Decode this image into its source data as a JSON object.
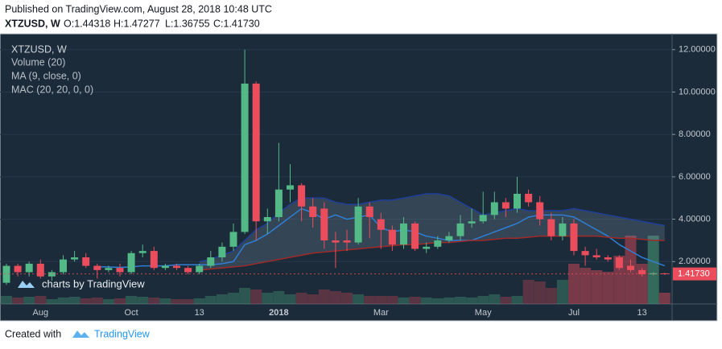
{
  "header": {
    "published": "Published on TradingView.com, August 28, 2018 10:48 UTC",
    "symbol": "XTZUSD, W",
    "ohlc": [
      "O:1.44318",
      "H:1.47277",
      "L:1.36755",
      "C:1.41730"
    ]
  },
  "chart_data": {
    "type": "candlestick",
    "legend": [
      "XTZUSD, W",
      "Volume (20)",
      "MA (9, close, 0)",
      "MAC (20, 20, 0, 0)"
    ],
    "watermark": "charts by TradingView",
    "categories": [
      null,
      null,
      null,
      "Aug",
      null,
      null,
      null,
      null,
      null,
      null,
      null,
      "Oct",
      null,
      null,
      null,
      null,
      null,
      "13",
      null,
      null,
      null,
      null,
      null,
      null,
      "2018",
      null,
      null,
      null,
      null,
      null,
      null,
      null,
      null,
      "Mar",
      null,
      null,
      null,
      null,
      null,
      null,
      null,
      null,
      "May",
      null,
      null,
      null,
      null,
      null,
      null,
      null,
      "Jul",
      null,
      null,
      null,
      null,
      null,
      "13",
      null,
      null
    ],
    "open": [
      1.0,
      1.8,
      1.5,
      1.9,
      1.3,
      1.5,
      2.1,
      2.2,
      1.8,
      1.6,
      1.7,
      1.5,
      2.4,
      2.5,
      1.7,
      1.8,
      1.7,
      1.5,
      1.8,
      2.2,
      2.7,
      3.4,
      10.4,
      3.9,
      4.1,
      5.4,
      5.6,
      4.6,
      4.5,
      3.0,
      3.0,
      2.9,
      4.6,
      4.0,
      3.5,
      2.8,
      3.8,
      2.6,
      2.7,
      3.0,
      3.2,
      3.8,
      3.9,
      4.2,
      4.8,
      4.5,
      5.2,
      4.8,
      4.0,
      3.2,
      3.8,
      2.5,
      2.3,
      2.2,
      2.2,
      1.8,
      1.6,
      1.4,
      1.44318
    ],
    "high": [
      1.9,
      1.9,
      2.0,
      2.1,
      1.6,
      2.3,
      2.5,
      2.4,
      1.9,
      1.8,
      1.9,
      2.5,
      2.8,
      2.7,
      1.9,
      1.9,
      1.8,
      1.9,
      2.5,
      2.9,
      3.8,
      12.0,
      10.5,
      4.5,
      7.6,
      6.6,
      5.7,
      5.0,
      4.8,
      3.4,
      3.5,
      5.0,
      4.8,
      4.3,
      3.7,
      4.1,
      3.9,
      2.9,
      3.2,
      3.4,
      4.2,
      4.5,
      5.3,
      5.3,
      5.0,
      6.0,
      5.4,
      5.1,
      4.3,
      4.1,
      4.0,
      2.7,
      2.6,
      2.3,
      2.3,
      2.1,
      1.7,
      1.5,
      1.47277
    ],
    "low": [
      0.9,
      1.3,
      1.3,
      1.2,
      1.1,
      1.4,
      2.0,
      1.7,
      1.2,
      1.5,
      1.3,
      1.4,
      2.2,
      1.6,
      1.6,
      1.6,
      1.4,
      1.4,
      1.7,
      2.0,
      2.5,
      3.3,
      3.0,
      3.3,
      3.9,
      4.8,
      3.9,
      3.6,
      2.6,
      1.7,
      2.5,
      2.8,
      3.1,
      2.6,
      2.5,
      2.6,
      2.5,
      2.4,
      2.6,
      2.9,
      3.0,
      3.6,
      3.8,
      4.0,
      4.1,
      4.3,
      4.6,
      3.7,
      3.0,
      3.0,
      2.3,
      1.8,
      2.1,
      2.0,
      1.6,
      1.5,
      1.3,
      1.35,
      1.36755
    ],
    "close": [
      1.8,
      1.5,
      1.9,
      1.3,
      1.5,
      2.1,
      2.2,
      1.8,
      1.6,
      1.7,
      1.5,
      2.4,
      2.5,
      1.7,
      1.8,
      1.7,
      1.5,
      1.8,
      2.2,
      2.7,
      3.4,
      10.4,
      3.9,
      4.1,
      5.4,
      5.6,
      4.6,
      4.1,
      3.0,
      2.9,
      2.9,
      4.6,
      4.1,
      3.5,
      2.8,
      3.8,
      2.6,
      2.7,
      3.0,
      3.2,
      3.8,
      3.9,
      4.2,
      4.8,
      4.5,
      5.2,
      4.8,
      4.0,
      3.2,
      3.8,
      2.5,
      2.3,
      2.2,
      2.1,
      1.7,
      1.6,
      1.4,
      1.45,
      1.4173
    ],
    "volume": [
      10,
      8,
      9,
      10,
      6,
      8,
      9,
      7,
      8,
      6,
      7,
      10,
      9,
      8,
      7,
      6,
      6,
      7,
      10,
      12,
      14,
      20,
      18,
      14,
      16,
      12,
      14,
      12,
      18,
      16,
      14,
      12,
      10,
      10,
      10,
      8,
      9,
      8,
      7,
      8,
      9,
      8,
      10,
      12,
      9,
      10,
      30,
      28,
      20,
      30,
      50,
      45,
      42,
      40,
      60,
      85,
      50,
      85,
      14
    ],
    "series": [
      {
        "name": "MA (9, close, 0)",
        "color": "#2f7fd6",
        "values": [
          null,
          null,
          null,
          null,
          null,
          null,
          null,
          null,
          1.75,
          1.75,
          1.72,
          1.75,
          1.8,
          1.8,
          1.8,
          1.85,
          1.85,
          1.85,
          1.85,
          1.9,
          2.0,
          2.8,
          3.0,
          3.3,
          3.7,
          4.1,
          4.5,
          4.3,
          4.0,
          4.2,
          4.0,
          4.1,
          4.2,
          3.6,
          3.4,
          3.5,
          3.4,
          3.2,
          3.1,
          3.0,
          3.0,
          3.0,
          3.2,
          3.4,
          3.6,
          3.8,
          4.1,
          4.2,
          4.2,
          4.2,
          4.1,
          3.8,
          3.5,
          3.2,
          2.8,
          2.5,
          2.2,
          2.0,
          1.8
        ]
      },
      {
        "name": "MAC upper",
        "color": "#1f3f9a",
        "values": [
          null,
          null,
          null,
          null,
          null,
          null,
          null,
          null,
          null,
          null,
          null,
          null,
          null,
          null,
          null,
          null,
          null,
          2.0,
          2.1,
          2.3,
          2.5,
          3.0,
          3.5,
          3.8,
          4.3,
          4.7,
          5.0,
          5.0,
          5.0,
          4.8,
          4.7,
          4.7,
          4.8,
          4.9,
          4.9,
          5.0,
          5.1,
          5.2,
          5.2,
          5.1,
          4.8,
          4.5,
          4.2,
          4.3,
          4.4,
          4.5,
          4.4,
          4.4,
          4.4,
          4.4,
          4.5,
          4.4,
          4.3,
          4.2,
          4.1,
          4.0,
          3.9,
          3.8,
          3.7
        ]
      },
      {
        "name": "MAC lower",
        "color": "#a02a2a",
        "values": [
          null,
          null,
          null,
          null,
          null,
          null,
          null,
          null,
          null,
          null,
          null,
          null,
          null,
          null,
          null,
          null,
          null,
          1.6,
          1.65,
          1.7,
          1.75,
          1.8,
          1.9,
          2.0,
          2.1,
          2.2,
          2.3,
          2.4,
          2.45,
          2.5,
          2.55,
          2.6,
          2.65,
          2.7,
          2.75,
          2.8,
          2.8,
          2.85,
          2.9,
          2.9,
          2.95,
          3.0,
          3.0,
          3.05,
          3.1,
          3.1,
          3.15,
          3.2,
          3.2,
          3.2,
          3.2,
          3.2,
          3.2,
          3.15,
          3.1,
          3.1,
          3.05,
          3.0,
          3.0
        ]
      }
    ],
    "up_color": "#53b987",
    "down_color": "#eb4d5c",
    "last_price_label": "1.41730",
    "ylim": [
      0,
      12.75
    ],
    "yticks": [
      {
        "value": 2,
        "label": "2.00000"
      },
      {
        "value": 4,
        "label": "4.00000"
      },
      {
        "value": 6,
        "label": "6.00000"
      },
      {
        "value": 8,
        "label": "8.00000"
      },
      {
        "value": 10,
        "label": "10.00000"
      },
      {
        "value": 12,
        "label": "12.00000"
      }
    ],
    "grid": true
  },
  "footer": {
    "created": "Created with",
    "brand": "TradingView"
  }
}
